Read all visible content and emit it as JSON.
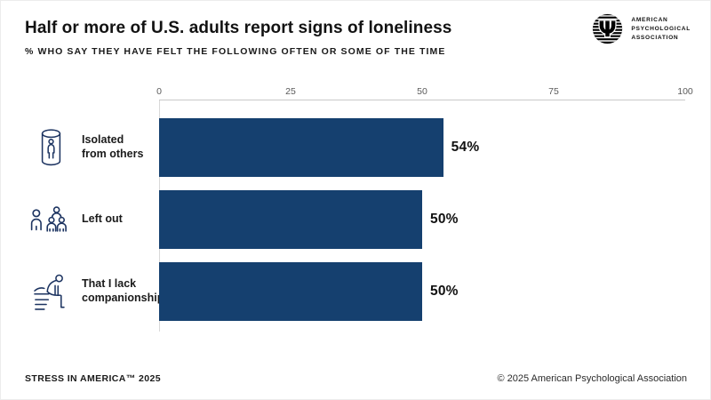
{
  "header": {
    "title": "Half or more of U.S. adults report signs of loneliness",
    "subtitle": "% WHO SAY THEY HAVE FELT THE FOLLOWING OFTEN OR SOME OF THE TIME"
  },
  "logo": {
    "icon": "apa-psi-logo",
    "org_lines": [
      "AMERICAN",
      "PSYCHOLOGICAL",
      "ASSOCIATION"
    ]
  },
  "chart_data": {
    "type": "bar",
    "orientation": "horizontal",
    "title": "Half or more of U.S. adults report signs of loneliness",
    "subtitle": "% WHO SAY THEY HAVE FELT THE FOLLOWING OFTEN OR SOME OF THE TIME",
    "categories": [
      "Isolated from others",
      "Left out",
      "That I lack companionship"
    ],
    "values": [
      54,
      50,
      50
    ],
    "value_labels": [
      "54%",
      "50%",
      "50%"
    ],
    "category_icons": [
      "person-in-cylinder-icon",
      "person-apart-from-group-icon",
      "person-slumped-on-bench-icon"
    ],
    "x_ticks": [
      "0",
      "25",
      "50",
      "75",
      "100"
    ],
    "xlim": [
      0,
      100
    ],
    "xlabel": "",
    "ylabel": "",
    "grid": false,
    "legend": false,
    "bar_color": "#15406F"
  },
  "colors": {
    "bar": "#15406F",
    "icon_stroke": "#1D3461",
    "axis_line": "#C8C8C8",
    "tick_text": "#5A5A5A",
    "text": "#121212"
  },
  "footer": {
    "left": "STRESS IN AMERICA™ 2025",
    "right": "© 2025 American Psychological Association"
  }
}
